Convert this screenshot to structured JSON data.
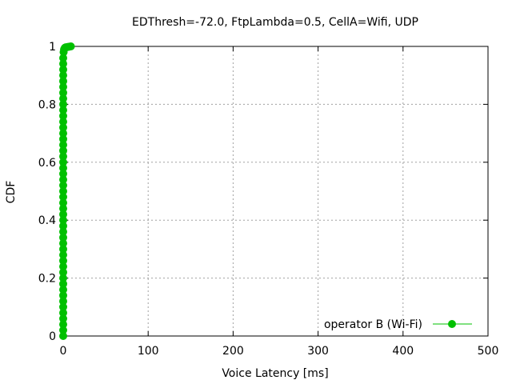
{
  "chart_data": {
    "type": "line",
    "title": "EDThresh=-72.0, FtpLambda=0.5, CellA=Wifi, UDP",
    "xlabel": "Voice Latency [ms]",
    "ylabel": "CDF",
    "xlim": [
      0,
      500
    ],
    "ylim": [
      0,
      1
    ],
    "x_ticks": [
      0,
      100,
      200,
      300,
      400,
      500
    ],
    "y_ticks": [
      0,
      0.2,
      0.4,
      0.6,
      0.8,
      1
    ],
    "x_tick_labels": [
      "0",
      "100",
      "200",
      "300",
      "400",
      "500"
    ],
    "y_tick_labels": [
      "0",
      "0.2",
      "0.4",
      "0.6",
      "0.8",
      "1"
    ],
    "grid": true,
    "legend_position": "bottom-right",
    "series": [
      {
        "name": "operator B (Wi-Fi)",
        "color": "#00c000",
        "marker": "circle",
        "points": [
          [
            0.0,
            0.0
          ],
          [
            0.0,
            0.02
          ],
          [
            0.0,
            0.04
          ],
          [
            0.0,
            0.06
          ],
          [
            0.0,
            0.08
          ],
          [
            0.0,
            0.1
          ],
          [
            0.0,
            0.12
          ],
          [
            0.0,
            0.14
          ],
          [
            0.0,
            0.16
          ],
          [
            0.0,
            0.18
          ],
          [
            0.0,
            0.2
          ],
          [
            0.0,
            0.22
          ],
          [
            0.0,
            0.24
          ],
          [
            0.0,
            0.26
          ],
          [
            0.0,
            0.28
          ],
          [
            0.0,
            0.3
          ],
          [
            0.0,
            0.32
          ],
          [
            0.0,
            0.34
          ],
          [
            0.0,
            0.36
          ],
          [
            0.0,
            0.38
          ],
          [
            0.0,
            0.4
          ],
          [
            0.0,
            0.42
          ],
          [
            0.0,
            0.44
          ],
          [
            0.0,
            0.46
          ],
          [
            0.0,
            0.48
          ],
          [
            0.0,
            0.5
          ],
          [
            0.0,
            0.52
          ],
          [
            0.0,
            0.54
          ],
          [
            0.0,
            0.56
          ],
          [
            0.0,
            0.58
          ],
          [
            0.0,
            0.6
          ],
          [
            0.0,
            0.62
          ],
          [
            0.0,
            0.64
          ],
          [
            0.0,
            0.66
          ],
          [
            0.0,
            0.68
          ],
          [
            0.0,
            0.7
          ],
          [
            0.0,
            0.72
          ],
          [
            0.0,
            0.74
          ],
          [
            0.0,
            0.76
          ],
          [
            0.0,
            0.78
          ],
          [
            0.0,
            0.8
          ],
          [
            0.0,
            0.82
          ],
          [
            0.0,
            0.84
          ],
          [
            0.0,
            0.86
          ],
          [
            0.0,
            0.88
          ],
          [
            0.0,
            0.9
          ],
          [
            0.0,
            0.92
          ],
          [
            0.0,
            0.94
          ],
          [
            0.0,
            0.96
          ],
          [
            0.5,
            0.98
          ],
          [
            1.0,
            0.99
          ],
          [
            2.0,
            0.995
          ],
          [
            3.0,
            0.997
          ],
          [
            5.0,
            0.998
          ],
          [
            7.0,
            0.999
          ],
          [
            9.0,
            1.0
          ]
        ]
      }
    ]
  }
}
